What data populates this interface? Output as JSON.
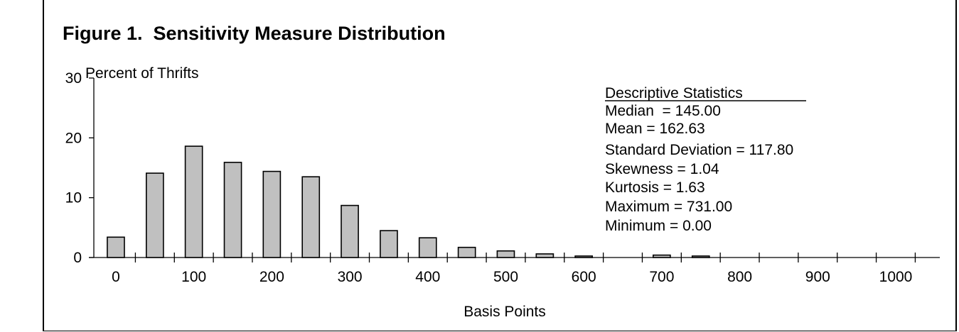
{
  "chart_data": {
    "type": "bar",
    "title": "Figure 1.  Sensitivity Measure Distribution",
    "ylabel": "Percent of Thrifts",
    "xlabel": "Basis Points",
    "ylim": [
      0,
      30
    ],
    "xlim": [
      -25,
      1050
    ],
    "y_ticks": [
      0,
      10,
      20,
      30
    ],
    "x_tick_labels": [
      0,
      100,
      200,
      300,
      400,
      500,
      600,
      700,
      800,
      900,
      1000
    ],
    "bar_width": 22,
    "bins": [
      0,
      50,
      100,
      150,
      200,
      250,
      300,
      350,
      400,
      450,
      500,
      550,
      600,
      650,
      700,
      750
    ],
    "values": [
      3.4,
      14.1,
      18.6,
      15.9,
      14.4,
      13.5,
      8.7,
      4.5,
      3.3,
      1.7,
      1.1,
      0.6,
      0.25,
      0,
      0.4,
      0.25
    ],
    "grid": false,
    "descriptive_statistics": {
      "heading": "Descriptive Statistics",
      "lines": [
        "Median  = 145.00",
        "Mean = 162.63",
        "Standard Deviation = 117.80",
        "Skewness = 1.04",
        "Kurtosis = 1.63",
        "Maximum = 731.00",
        "Minimum = 0.00"
      ]
    }
  }
}
